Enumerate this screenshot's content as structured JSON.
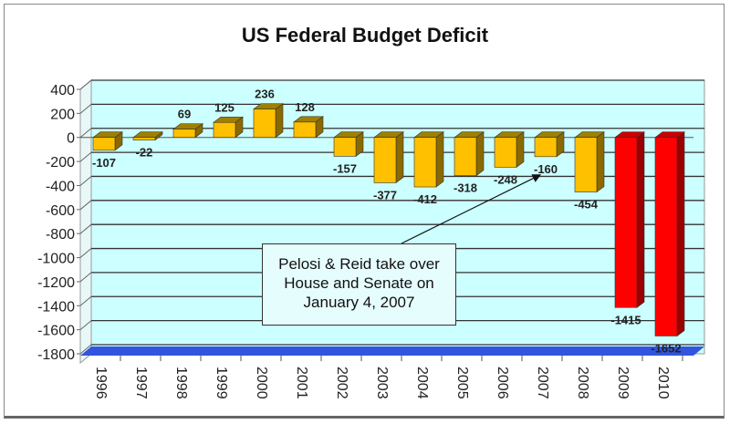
{
  "chart_data": {
    "type": "bar",
    "title": "US Federal Budget Deficit",
    "xlabel": "",
    "ylabel": "",
    "categories": [
      "1996",
      "1997",
      "1998",
      "1999",
      "2000",
      "2001",
      "2002",
      "2003",
      "2004",
      "2005",
      "2006",
      "2007",
      "2008",
      "2009",
      "2010"
    ],
    "values": [
      -107,
      -22,
      69,
      125,
      236,
      128,
      -157,
      -377,
      -412,
      -318,
      -248,
      -160,
      -454,
      -1415,
      -1652
    ],
    "data_labels": [
      "-107",
      "-22",
      "69",
      "125",
      "236",
      "128",
      "-157",
      "-377",
      "-412",
      "-318",
      "-248",
      "-160",
      "-454",
      "-1415",
      "-1652"
    ],
    "ylim": [
      -1800,
      400
    ],
    "yticks": [
      400,
      200,
      0,
      -200,
      -400,
      -600,
      -800,
      -1000,
      -1200,
      -1400,
      -1600,
      -1800
    ],
    "ytick_labels": [
      "400",
      "200",
      "0",
      "-200",
      "-400",
      "-600",
      "-800",
      "-1000",
      "-1200",
      "-1400",
      "-1600",
      "-1800"
    ],
    "grid": true,
    "colors": {
      "default": "#ffc000",
      "highlight": "#ff0000",
      "plot_bg": "#ccffff",
      "floor": "#3355dd"
    },
    "highlight_categories": [
      "2009",
      "2010"
    ],
    "annotation": {
      "lines": [
        "Pelosi & Reid take over",
        "House and Senate on",
        "January 4, 2007"
      ],
      "points_to": "2007"
    }
  }
}
